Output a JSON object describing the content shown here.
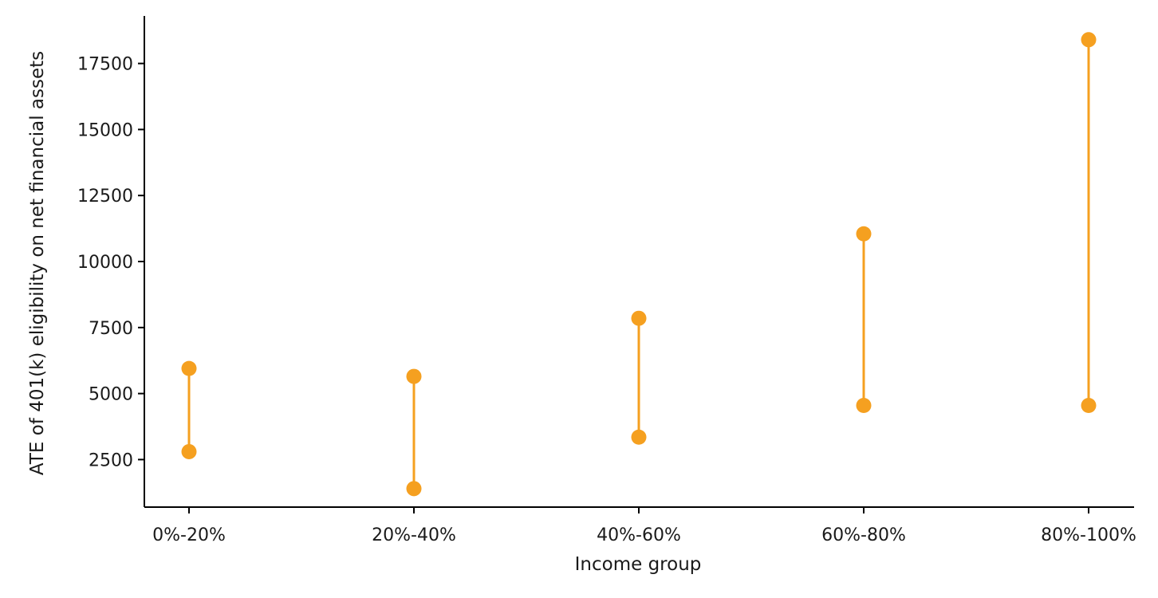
{
  "chart_data": {
    "type": "dumbbell",
    "xlabel": "Income group",
    "ylabel": "ATE of 401(k) eligibility on net financial assets",
    "categories": [
      "0%-20%",
      "20%-40%",
      "40%-60%",
      "60%-80%",
      "80%-100%"
    ],
    "lower": [
      2800,
      1400,
      3350,
      4550,
      4550
    ],
    "upper": [
      5950,
      5650,
      7850,
      11050,
      18400
    ],
    "ylim": [
      700,
      19300
    ],
    "yticks": [
      2500,
      5000,
      7500,
      10000,
      12500,
      15000,
      17500
    ],
    "grid": false,
    "legend": "none",
    "color": "#f5a020"
  }
}
